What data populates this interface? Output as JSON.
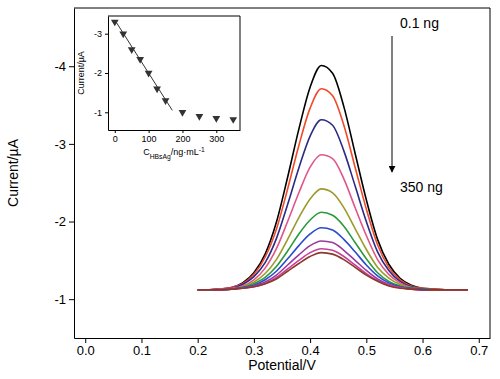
{
  "chart_data": [
    {
      "type": "line",
      "x_label": "Potential/V",
      "y_label": "Current/µA",
      "x": [
        0.2,
        0.22,
        0.24,
        0.26,
        0.28,
        0.3,
        0.32,
        0.34,
        0.36,
        0.38,
        0.4,
        0.42,
        0.44,
        0.46,
        0.48,
        0.5,
        0.52,
        0.54,
        0.56,
        0.58,
        0.6,
        0.62,
        0.64,
        0.66,
        0.68
      ],
      "series": [
        {
          "color": "#000000",
          "values": [
            -1.12,
            -1.12,
            -1.13,
            -1.15,
            -1.21,
            -1.34,
            -1.58,
            -1.99,
            -2.57,
            -3.19,
            -3.73,
            -4.01,
            -3.91,
            -3.48,
            -2.88,
            -2.28,
            -1.77,
            -1.45,
            -1.27,
            -1.18,
            -1.14,
            -1.13,
            -1.12,
            -1.12,
            -1.12
          ]
        },
        {
          "color": "#f04a2a",
          "values": [
            -1.12,
            -1.12,
            -1.13,
            -1.15,
            -1.2,
            -1.32,
            -1.54,
            -1.9,
            -2.42,
            -2.98,
            -3.46,
            -3.71,
            -3.62,
            -3.24,
            -2.7,
            -2.16,
            -1.7,
            -1.41,
            -1.25,
            -1.17,
            -1.14,
            -1.13,
            -1.12,
            -1.12,
            -1.12
          ]
        },
        {
          "color": "#2b2b86",
          "values": [
            -1.12,
            -1.12,
            -1.13,
            -1.14,
            -1.19,
            -1.29,
            -1.47,
            -1.78,
            -2.22,
            -2.69,
            -3.1,
            -3.31,
            -3.24,
            -2.91,
            -2.46,
            -2.0,
            -1.61,
            -1.37,
            -1.23,
            -1.16,
            -1.13,
            -1.12,
            -1.12,
            -1.12,
            -1.12
          ]
        },
        {
          "color": "#e0558a",
          "values": [
            -1.12,
            -1.12,
            -1.13,
            -1.14,
            -1.17,
            -1.25,
            -1.4,
            -1.65,
            -2.0,
            -2.37,
            -2.7,
            -2.86,
            -2.81,
            -2.55,
            -2.18,
            -1.82,
            -1.51,
            -1.32,
            -1.21,
            -1.15,
            -1.13,
            -1.12,
            -1.12,
            -1.12,
            -1.12
          ]
        },
        {
          "color": "#9c9a2c",
          "values": [
            -1.12,
            -1.12,
            -1.12,
            -1.13,
            -1.16,
            -1.22,
            -1.33,
            -1.51,
            -1.77,
            -2.05,
            -2.29,
            -2.42,
            -2.37,
            -2.18,
            -1.91,
            -1.64,
            -1.41,
            -1.27,
            -1.19,
            -1.15,
            -1.13,
            -1.12,
            -1.12,
            -1.12,
            -1.12
          ]
        },
        {
          "color": "#2a9a3a",
          "values": [
            -1.12,
            -1.12,
            -1.12,
            -1.13,
            -1.15,
            -1.2,
            -1.28,
            -1.42,
            -1.62,
            -1.84,
            -2.02,
            -2.12,
            -2.08,
            -1.94,
            -1.73,
            -1.52,
            -1.34,
            -1.23,
            -1.17,
            -1.14,
            -1.13,
            -1.12,
            -1.12,
            -1.12,
            -1.12
          ]
        },
        {
          "color": "#2a4ad0",
          "values": [
            -1.12,
            -1.12,
            -1.12,
            -1.13,
            -1.15,
            -1.18,
            -1.25,
            -1.36,
            -1.52,
            -1.69,
            -1.84,
            -1.92,
            -1.89,
            -1.77,
            -1.61,
            -1.44,
            -1.3,
            -1.21,
            -1.16,
            -1.14,
            -1.13,
            -1.12,
            -1.12,
            -1.12,
            -1.12
          ]
        },
        {
          "color": "#9a3aa0",
          "values": [
            -1.12,
            -1.12,
            -1.12,
            -1.13,
            -1.14,
            -1.17,
            -1.22,
            -1.31,
            -1.44,
            -1.57,
            -1.69,
            -1.75,
            -1.73,
            -1.63,
            -1.5,
            -1.37,
            -1.26,
            -1.19,
            -1.15,
            -1.13,
            -1.12,
            -1.12,
            -1.12,
            -1.12,
            -1.12
          ]
        },
        {
          "color": "#c8409a",
          "values": [
            -1.12,
            -1.12,
            -1.12,
            -1.13,
            -1.14,
            -1.16,
            -1.2,
            -1.28,
            -1.39,
            -1.5,
            -1.6,
            -1.65,
            -1.63,
            -1.55,
            -1.44,
            -1.33,
            -1.24,
            -1.18,
            -1.15,
            -1.13,
            -1.12,
            -1.12,
            -1.12,
            -1.12,
            -1.12
          ]
        },
        {
          "color": "#8a3a2a",
          "values": [
            -1.12,
            -1.12,
            -1.12,
            -1.13,
            -1.14,
            -1.16,
            -1.2,
            -1.26,
            -1.36,
            -1.46,
            -1.55,
            -1.6,
            -1.58,
            -1.51,
            -1.41,
            -1.31,
            -1.23,
            -1.17,
            -1.14,
            -1.13,
            -1.12,
            -1.12,
            -1.12,
            -1.12,
            -1.12
          ]
        }
      ],
      "xlim": [
        -0.02,
        0.72
      ],
      "xticks": [
        {
          "value": 0,
          "label": "0.0"
        },
        0.1,
        0.2,
        0.3,
        0.4,
        0.5,
        0.6,
        0.7
      ],
      "ylim": [
        -0.5,
        -4.75
      ],
      "yticks": [
        -4,
        -3,
        -2,
        -1
      ],
      "annotations": [
        "0.1 ng",
        "350 ng"
      ]
    },
    {
      "type": "scatter",
      "x_label": {
        "text": "C",
        "sub": "HBsAg",
        "rest": "/ng·mL",
        "sup": "-1"
      },
      "y_label": "Current/µA",
      "series": [
        {
          "type": "scatter",
          "marker": "triangle-down",
          "color": "#333333",
          "x": [
            0.1,
            25,
            50,
            75,
            100,
            125,
            150,
            200,
            250,
            300,
            350
          ],
          "values": [
            -3.3,
            -3.0,
            -2.6,
            -2.35,
            -2.0,
            -1.6,
            -1.3,
            -1.0,
            -0.9,
            -0.85,
            -0.82
          ]
        },
        {
          "type": "line",
          "line_style": "solid",
          "color": "#333333",
          "x": [
            0,
            170
          ],
          "values": [
            -3.35,
            -1.05
          ]
        }
      ],
      "xlim": [
        -20,
        370
      ],
      "xticks": [
        0,
        100,
        200,
        300
      ],
      "ylim": [
        -0.55,
        -3.45
      ],
      "yticks": [
        -3,
        -2,
        -1
      ]
    }
  ]
}
